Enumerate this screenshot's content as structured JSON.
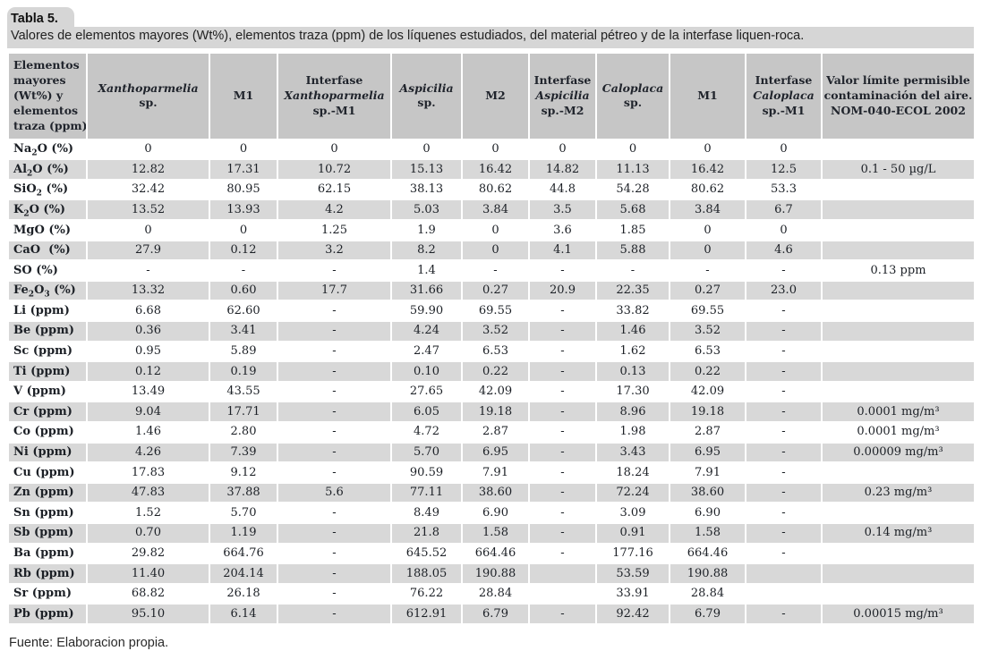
{
  "caption": {
    "title": "Tabla 5.",
    "subtitle": "Valores de elementos mayores (Wt%), elementos traza (ppm) de los líquenes estudiados, del material pétreo y de la interfase liquen-roca."
  },
  "source": "Fuente: Elaboracion propia.",
  "colors": {
    "caption_bg": "#d6d6d6",
    "header_bg": "#c6c6c6",
    "row_alt_bg": "#d8d8d8"
  },
  "table": {
    "corner_header_lines": [
      "Elementos",
      "mayores",
      "(Wt%) y",
      "elementos",
      "traza (ppm)"
    ],
    "columns": [
      {
        "name": "xanthoparmelia",
        "lines": [
          {
            "t": "Xanthoparmelia",
            "i": true
          },
          {
            "t": "sp.",
            "i": false
          }
        ]
      },
      {
        "name": "m1-a",
        "lines": [
          {
            "t": "M1",
            "i": false
          }
        ]
      },
      {
        "name": "interfase-xanthoparmelia-m1",
        "lines": [
          {
            "t": "Interfase",
            "i": false
          },
          {
            "t": "Xanthoparmelia",
            "i": true
          },
          {
            "t": "sp.-M1",
            "i": false
          }
        ]
      },
      {
        "name": "aspicilia",
        "lines": [
          {
            "t": "Aspicilia",
            "i": true
          },
          {
            "t": "sp.",
            "i": false
          }
        ]
      },
      {
        "name": "m2",
        "lines": [
          {
            "t": "M2",
            "i": false
          }
        ]
      },
      {
        "name": "interfase-aspicilia-m2",
        "lines": [
          {
            "t": "Interfase",
            "i": false
          },
          {
            "t": "Aspicilia",
            "i": true
          },
          {
            "t": "sp.-M2",
            "i": false
          }
        ]
      },
      {
        "name": "caloplaca",
        "lines": [
          {
            "t": "Caloplaca",
            "i": true
          },
          {
            "t": "sp.",
            "i": false
          }
        ]
      },
      {
        "name": "m1-b",
        "lines": [
          {
            "t": "M1",
            "i": false
          }
        ]
      },
      {
        "name": "interfase-caloplaca-m1",
        "lines": [
          {
            "t": "Interfase",
            "i": false
          },
          {
            "t": "Caloplaca",
            "i": true
          },
          {
            "t": "sp.-M1",
            "i": false
          }
        ]
      },
      {
        "name": "valor-limite",
        "lines": [
          {
            "t": "Valor límite permisible",
            "i": false
          },
          {
            "t": "contaminación del aire.",
            "i": false
          },
          {
            "t": "NOM-040-ECOL 2002",
            "i": false
          }
        ]
      }
    ],
    "rows": [
      {
        "label": "Na~2~O (%)",
        "values": [
          "0",
          "0",
          "0",
          "0",
          "0",
          "0",
          "0",
          "0",
          "0",
          ""
        ]
      },
      {
        "label": "Al~2~O (%)",
        "values": [
          "12.82",
          "17.31",
          "10.72",
          "15.13",
          "16.42",
          "14.82",
          "11.13",
          "16.42",
          "12.5",
          "0.1 - 50 µg/L"
        ]
      },
      {
        "label": "SiO~2~ (%)",
        "values": [
          "32.42",
          "80.95",
          "62.15",
          "38.13",
          "80.62",
          "44.8",
          "54.28",
          "80.62",
          "53.3",
          ""
        ]
      },
      {
        "label": "K~2~O (%)",
        "values": [
          "13.52",
          "13.93",
          "4.2",
          "5.03",
          "3.84",
          "3.5",
          "5.68",
          "3.84",
          "6.7",
          ""
        ]
      },
      {
        "label": "MgO (%)",
        "values": [
          "0",
          "0",
          "1.25",
          "1.9",
          "0",
          "3.6",
          "1.85",
          "0",
          "0",
          ""
        ]
      },
      {
        "label": "CaO  (%)",
        "values": [
          "27.9",
          "0.12",
          "3.2",
          "8.2",
          "0",
          "4.1",
          "5.88",
          "0",
          "4.6",
          ""
        ]
      },
      {
        "label": "SO (%)",
        "values": [
          "-",
          "-",
          "-",
          "1.4",
          "-",
          "-",
          "-",
          "-",
          "-",
          "0.13 ppm"
        ]
      },
      {
        "label": "Fe~2~O~3~ (%)",
        "values": [
          "13.32",
          "0.60",
          "17.7",
          "31.66",
          "0.27",
          "20.9",
          "22.35",
          "0.27",
          "23.0",
          ""
        ]
      },
      {
        "label": "Li (ppm)",
        "values": [
          "6.68",
          "62.60",
          "-",
          "59.90",
          "69.55",
          "-",
          "33.82",
          "69.55",
          "-",
          ""
        ]
      },
      {
        "label": "Be (ppm)",
        "values": [
          "0.36",
          "3.41",
          "-",
          "4.24",
          "3.52",
          "-",
          "1.46",
          "3.52",
          "-",
          ""
        ]
      },
      {
        "label": "Sc (ppm)",
        "values": [
          "0.95",
          "5.89",
          "-",
          "2.47",
          "6.53",
          "-",
          "1.62",
          "6.53",
          "-",
          ""
        ]
      },
      {
        "label": "Ti (ppm)",
        "values": [
          "0.12",
          "0.19",
          "-",
          "0.10",
          "0.22",
          "-",
          "0.13",
          "0.22",
          "-",
          ""
        ]
      },
      {
        "label": "V (ppm)",
        "values": [
          "13.49",
          "43.55",
          "-",
          "27.65",
          "42.09",
          "-",
          "17.30",
          "42.09",
          "-",
          ""
        ]
      },
      {
        "label": "Cr (ppm)",
        "values": [
          "9.04",
          "17.71",
          "-",
          "6.05",
          "19.18",
          "-",
          "8.96",
          "19.18",
          "-",
          "0.0001 mg/m³"
        ]
      },
      {
        "label": "Co (ppm)",
        "values": [
          "1.46",
          "2.80",
          "-",
          "4.72",
          "2.87",
          "-",
          "1.98",
          "2.87",
          "-",
          "0.0001 mg/m³"
        ]
      },
      {
        "label": "Ni (ppm)",
        "values": [
          "4.26",
          "7.39",
          "-",
          "5.70",
          "6.95",
          "-",
          "3.43",
          "6.95",
          "-",
          "0.00009 mg/m³"
        ]
      },
      {
        "label": "Cu (ppm)",
        "values": [
          "17.83",
          "9.12",
          "-",
          "90.59",
          "7.91",
          "-",
          "18.24",
          "7.91",
          "-",
          ""
        ]
      },
      {
        "label": "Zn (ppm)",
        "values": [
          "47.83",
          "37.88",
          "5.6",
          "77.11",
          "38.60",
          "-",
          "72.24",
          "38.60",
          "-",
          "0.23 mg/m³"
        ]
      },
      {
        "label": "Sn (ppm)",
        "values": [
          "1.52",
          "5.70",
          "-",
          "8.49",
          "6.90",
          "-",
          "3.09",
          "6.90",
          "-",
          ""
        ]
      },
      {
        "label": "Sb (ppm)",
        "values": [
          "0.70",
          "1.19",
          "-",
          "21.8",
          "1.58",
          "-",
          "0.91",
          "1.58",
          "-",
          "0.14 mg/m³"
        ]
      },
      {
        "label": "Ba (ppm)",
        "values": [
          "29.82",
          "664.76",
          "-",
          "645.52",
          "664.46",
          "-",
          "177.16",
          "664.46",
          "-",
          ""
        ]
      },
      {
        "label": "Rb (ppm)",
        "values": [
          "11.40",
          "204.14",
          "-",
          "188.05",
          "190.88",
          "",
          "53.59",
          "190.88",
          "",
          ""
        ]
      },
      {
        "label": "Sr (ppm)",
        "values": [
          "68.82",
          "26.18",
          "-",
          "76.22",
          "28.84",
          "",
          "33.91",
          "28.84",
          "",
          ""
        ]
      },
      {
        "label": "Pb (ppm)",
        "values": [
          "95.10",
          "6.14",
          "-",
          "612.91",
          "6.79",
          "-",
          "92.42",
          "6.79",
          "-",
          "0.00015 mg/m³"
        ]
      }
    ]
  }
}
